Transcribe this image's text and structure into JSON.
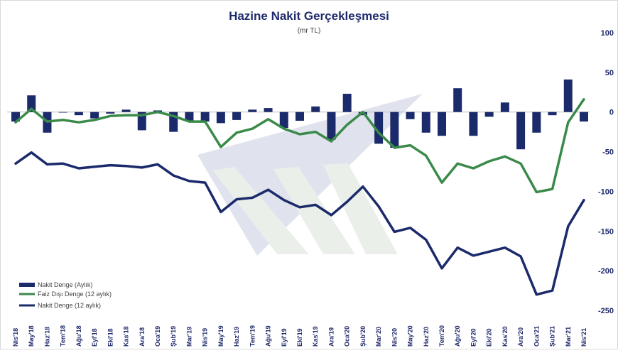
{
  "chart_data": {
    "type": "bar+line",
    "title": "Hazine  Nakit  Gerçekleşmesi",
    "subtitle": "(mr TL)",
    "categories": [
      "Nis'18",
      "May'18",
      "Haz'18",
      "Tem'18",
      "Ağu'18",
      "Eyl'18",
      "Eki'18",
      "Kas'18",
      "Ara'18",
      "Oca'19",
      "Şub'19",
      "Mar'19",
      "Nis'19",
      "May'19",
      "Haz'19",
      "Tem'19",
      "Ağu'19",
      "Eyl'19",
      "Eki'19",
      "Kas'19",
      "Ara'19",
      "Oca'20",
      "Şub'20",
      "Mar'20",
      "Nis'20",
      "May'20",
      "Haz'20",
      "Tem'20",
      "Ağu'20",
      "Eyl'20",
      "Eki'20",
      "Kas'20",
      "Ara'20",
      "Oca'21",
      "Şub'21",
      "Mar'21",
      "Nis'21"
    ],
    "ylim": [
      -250,
      100
    ],
    "yticks": [
      100,
      50,
      0,
      -50,
      -100,
      -150,
      -200,
      -250
    ],
    "y_axis_position": "right",
    "grid": false,
    "legend_position": "bottom-left",
    "series": [
      {
        "name": "Nakit Denge (Aylık)",
        "type": "bar",
        "color": "#1b2a6b",
        "values": [
          -12,
          21,
          -26,
          0,
          -4,
          -8,
          -2,
          3,
          -23,
          2,
          -25,
          -11,
          -12,
          -14,
          -10,
          3,
          5,
          -20,
          -11,
          7,
          -35,
          23,
          -4,
          -40,
          -45,
          -9,
          -26,
          -30,
          30,
          -30,
          -6,
          12,
          -47,
          -26,
          -4,
          41,
          -12
        ]
      },
      {
        "name": "Faiz Dışı Denge (12 aylık)",
        "type": "line",
        "color": "#3a8a4a",
        "values": [
          -13,
          4,
          -12,
          -10,
          -13,
          -10,
          -5,
          -4,
          -4,
          0,
          -5,
          -12,
          -12,
          -44,
          -26,
          -21,
          -9,
          -21,
          -28,
          -25,
          -37,
          -16,
          0,
          -26,
          -45,
          -42,
          -55,
          -89,
          -65,
          -71,
          -62,
          -56,
          -65,
          -101,
          -97,
          -13,
          16
        ]
      },
      {
        "name": "Nakit Denge (12 aylık)",
        "type": "line",
        "color": "#1b2a6b",
        "values": [
          -65,
          -51,
          -66,
          -65,
          -71,
          -69,
          -67,
          -68,
          -70,
          -66,
          -80,
          -87,
          -89,
          -126,
          -110,
          -108,
          -98,
          -111,
          -120,
          -117,
          -130,
          -113,
          -94,
          -119,
          -151,
          -146,
          -161,
          -197,
          -171,
          -181,
          -176,
          -171,
          -182,
          -230,
          -225,
          -144,
          -111
        ]
      }
    ]
  }
}
